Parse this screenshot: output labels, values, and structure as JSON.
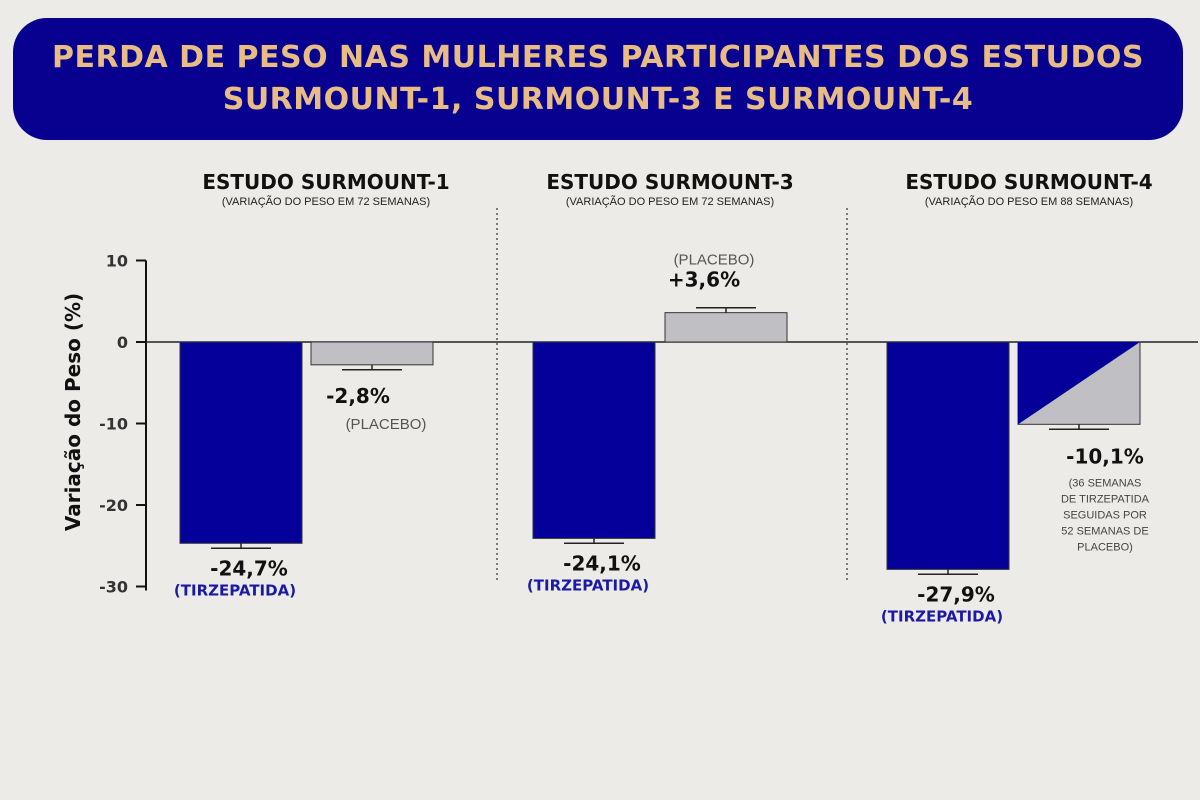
{
  "title": {
    "line1": "PERDA DE PESO NAS MULHERES PARTICIPANTES DOS ESTUDOS",
    "line2": "SURMOUNT-1, SURMOUNT-3 E SURMOUNT-4"
  },
  "colors": {
    "banner": "#08008f",
    "title_text": "#e8bd85",
    "tirzepatida": "#06009a",
    "placebo": "#c0bfc4",
    "tirzepatida_label": "#1a1aa6"
  },
  "chart_data": {
    "type": "bar",
    "ylabel": "Variação do Peso (%)",
    "ylim": [
      -30,
      10
    ],
    "yticks": [
      "10",
      "0",
      "-10",
      "-20",
      "-30"
    ],
    "grid": false,
    "studies": [
      {
        "title": "ESTUDO SURMOUNT-1",
        "subtitle": "(VARIAÇÃO DO PESO EM 72 SEMANAS)",
        "bars": [
          {
            "group": "TIRZEPATIDA",
            "value": -24.7,
            "value_label": "-24,7%",
            "group_label": "(TIRZEPATIDA)"
          },
          {
            "group": "PLACEBO",
            "value": -2.8,
            "value_label": "-2,8%",
            "group_label": "(PLACEBO)"
          }
        ]
      },
      {
        "title": "ESTUDO SURMOUNT-3",
        "subtitle": "(VARIAÇÃO DO PESO EM 72 SEMANAS)",
        "bars": [
          {
            "group": "TIRZEPATIDA",
            "value": -24.1,
            "value_label": "-24,1%",
            "group_label": "(TIRZEPATIDA)"
          },
          {
            "group": "PLACEBO",
            "value": 3.6,
            "value_label": "+3,6%",
            "group_label": "(PLACEBO)"
          }
        ]
      },
      {
        "title": "ESTUDO SURMOUNT-4",
        "subtitle": "(VARIAÇÃO DO PESO EM 88 SEMANAS)",
        "bars": [
          {
            "group": "TIRZEPATIDA",
            "value": -27.9,
            "value_label": "-27,9%",
            "group_label": "(TIRZEPATIDA)"
          },
          {
            "group": "TIRZEPATIDA-PLACEBO",
            "value": -10.1,
            "value_label": "-10,1%",
            "group_label_lines": [
              "(36 SEMANAS",
              "DE TIRZEPATIDA",
              "SEGUIDAS POR",
              "52 SEMANAS DE",
              "PLACEBO)"
            ]
          }
        ]
      }
    ]
  }
}
